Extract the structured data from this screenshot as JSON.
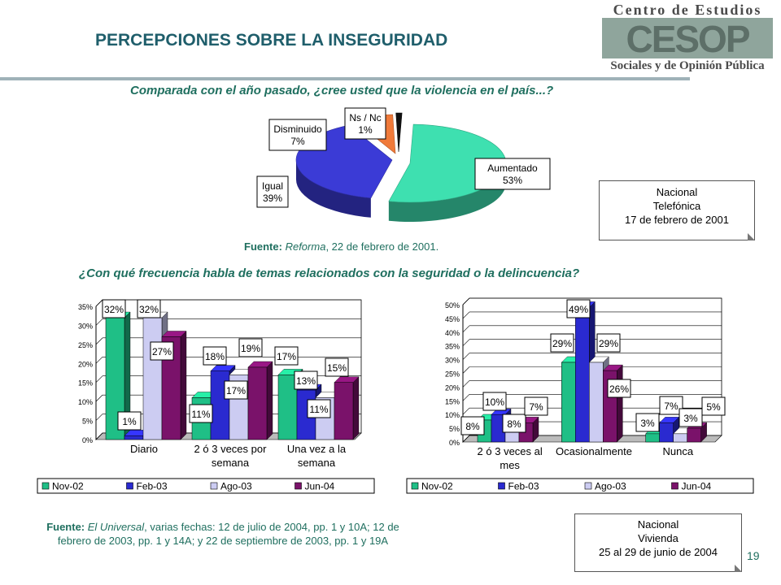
{
  "page": {
    "title": "PERCEPCIONES SOBRE LA INSEGURIDAD",
    "logo_top": "Centro de Estudios",
    "logo_mid": "CESOP",
    "logo_bottom": "Sociales y de Opinión Pública",
    "page_number": "19"
  },
  "question1": "Comparada con el año pasado, ¿cree usted que la violencia en el país...?",
  "question2": "¿Con qué frecuencia habla de temas relacionados con la seguridad o la delincuencia?",
  "fuente1": {
    "label": "Fuente:",
    "source": "Reforma",
    "rest": ", 22 de febrero de 2001."
  },
  "fuente2": {
    "label": "Fuente:",
    "source": "El Universal",
    "rest": ", varias fechas: 12 de julio de 2004, pp. 1 y 10A; 12 de febrero de 2003, pp. 1 y 14A; y 22 de septiembre de 2003, pp. 1 y 19A"
  },
  "note1": {
    "line1": "Nacional",
    "line2": "Telefónica",
    "line3": "17 de febrero de 2001"
  },
  "note2": {
    "line1": "Nacional",
    "line2": "Vivienda",
    "line3": "25 al 29 de junio de 2004"
  },
  "colors": {
    "nov02": "#1fbf86",
    "feb03": "#2a2ad0",
    "ago03": "#ccccf2",
    "jun04": "#7a126a",
    "aumentado": "#3ee0b0",
    "igual": "#3b3bd6",
    "disminuido": "#f07a3a",
    "nsnc": "#111111"
  },
  "chart_data": [
    {
      "type": "pie",
      "categories": [
        "Aumentado",
        "Igual",
        "Disminuido",
        "Ns / Nc"
      ],
      "values": [
        53,
        39,
        7,
        1
      ],
      "labels": [
        "53%",
        "39%",
        "7%",
        "1%"
      ]
    },
    {
      "type": "bar",
      "categories": [
        "Diario",
        "2 ó 3 veces por semana",
        "Una vez a la semana"
      ],
      "category_lines": [
        [
          "Diario"
        ],
        [
          "2 ó 3 veces por",
          "semana"
        ],
        [
          "Una vez a la",
          "semana"
        ]
      ],
      "series": [
        {
          "name": "Nov-02",
          "values": [
            32,
            11,
            17
          ]
        },
        {
          "name": "Feb-03",
          "values": [
            1,
            18,
            13
          ]
        },
        {
          "name": "Ago-03",
          "values": [
            32,
            17,
            11
          ]
        },
        {
          "name": "Jun-04",
          "values": [
            27,
            19,
            15
          ]
        }
      ],
      "ylim": [
        0,
        35
      ],
      "yticks": [
        "0%",
        "5%",
        "10%",
        "15%",
        "20%",
        "25%",
        "30%",
        "35%"
      ],
      "legend": "bottom"
    },
    {
      "type": "bar",
      "categories": [
        "2 ó 3 veces al mes",
        "Ocasionalmente",
        "Nunca"
      ],
      "category_lines": [
        [
          "2 ó 3 veces al",
          "mes"
        ],
        [
          "Ocasionalmente"
        ],
        [
          "Nunca"
        ]
      ],
      "series": [
        {
          "name": "Nov-02",
          "values": [
            8,
            29,
            3
          ]
        },
        {
          "name": "Feb-03",
          "values": [
            10,
            49,
            7
          ]
        },
        {
          "name": "Ago-03",
          "values": [
            8,
            29,
            3
          ]
        },
        {
          "name": "Jun-04",
          "values": [
            7,
            26,
            5
          ]
        }
      ],
      "ylim": [
        0,
        50
      ],
      "yticks": [
        "0%",
        "5%",
        "10%",
        "15%",
        "20%",
        "25%",
        "30%",
        "35%",
        "40%",
        "45%",
        "50%"
      ],
      "legend": "bottom"
    }
  ]
}
